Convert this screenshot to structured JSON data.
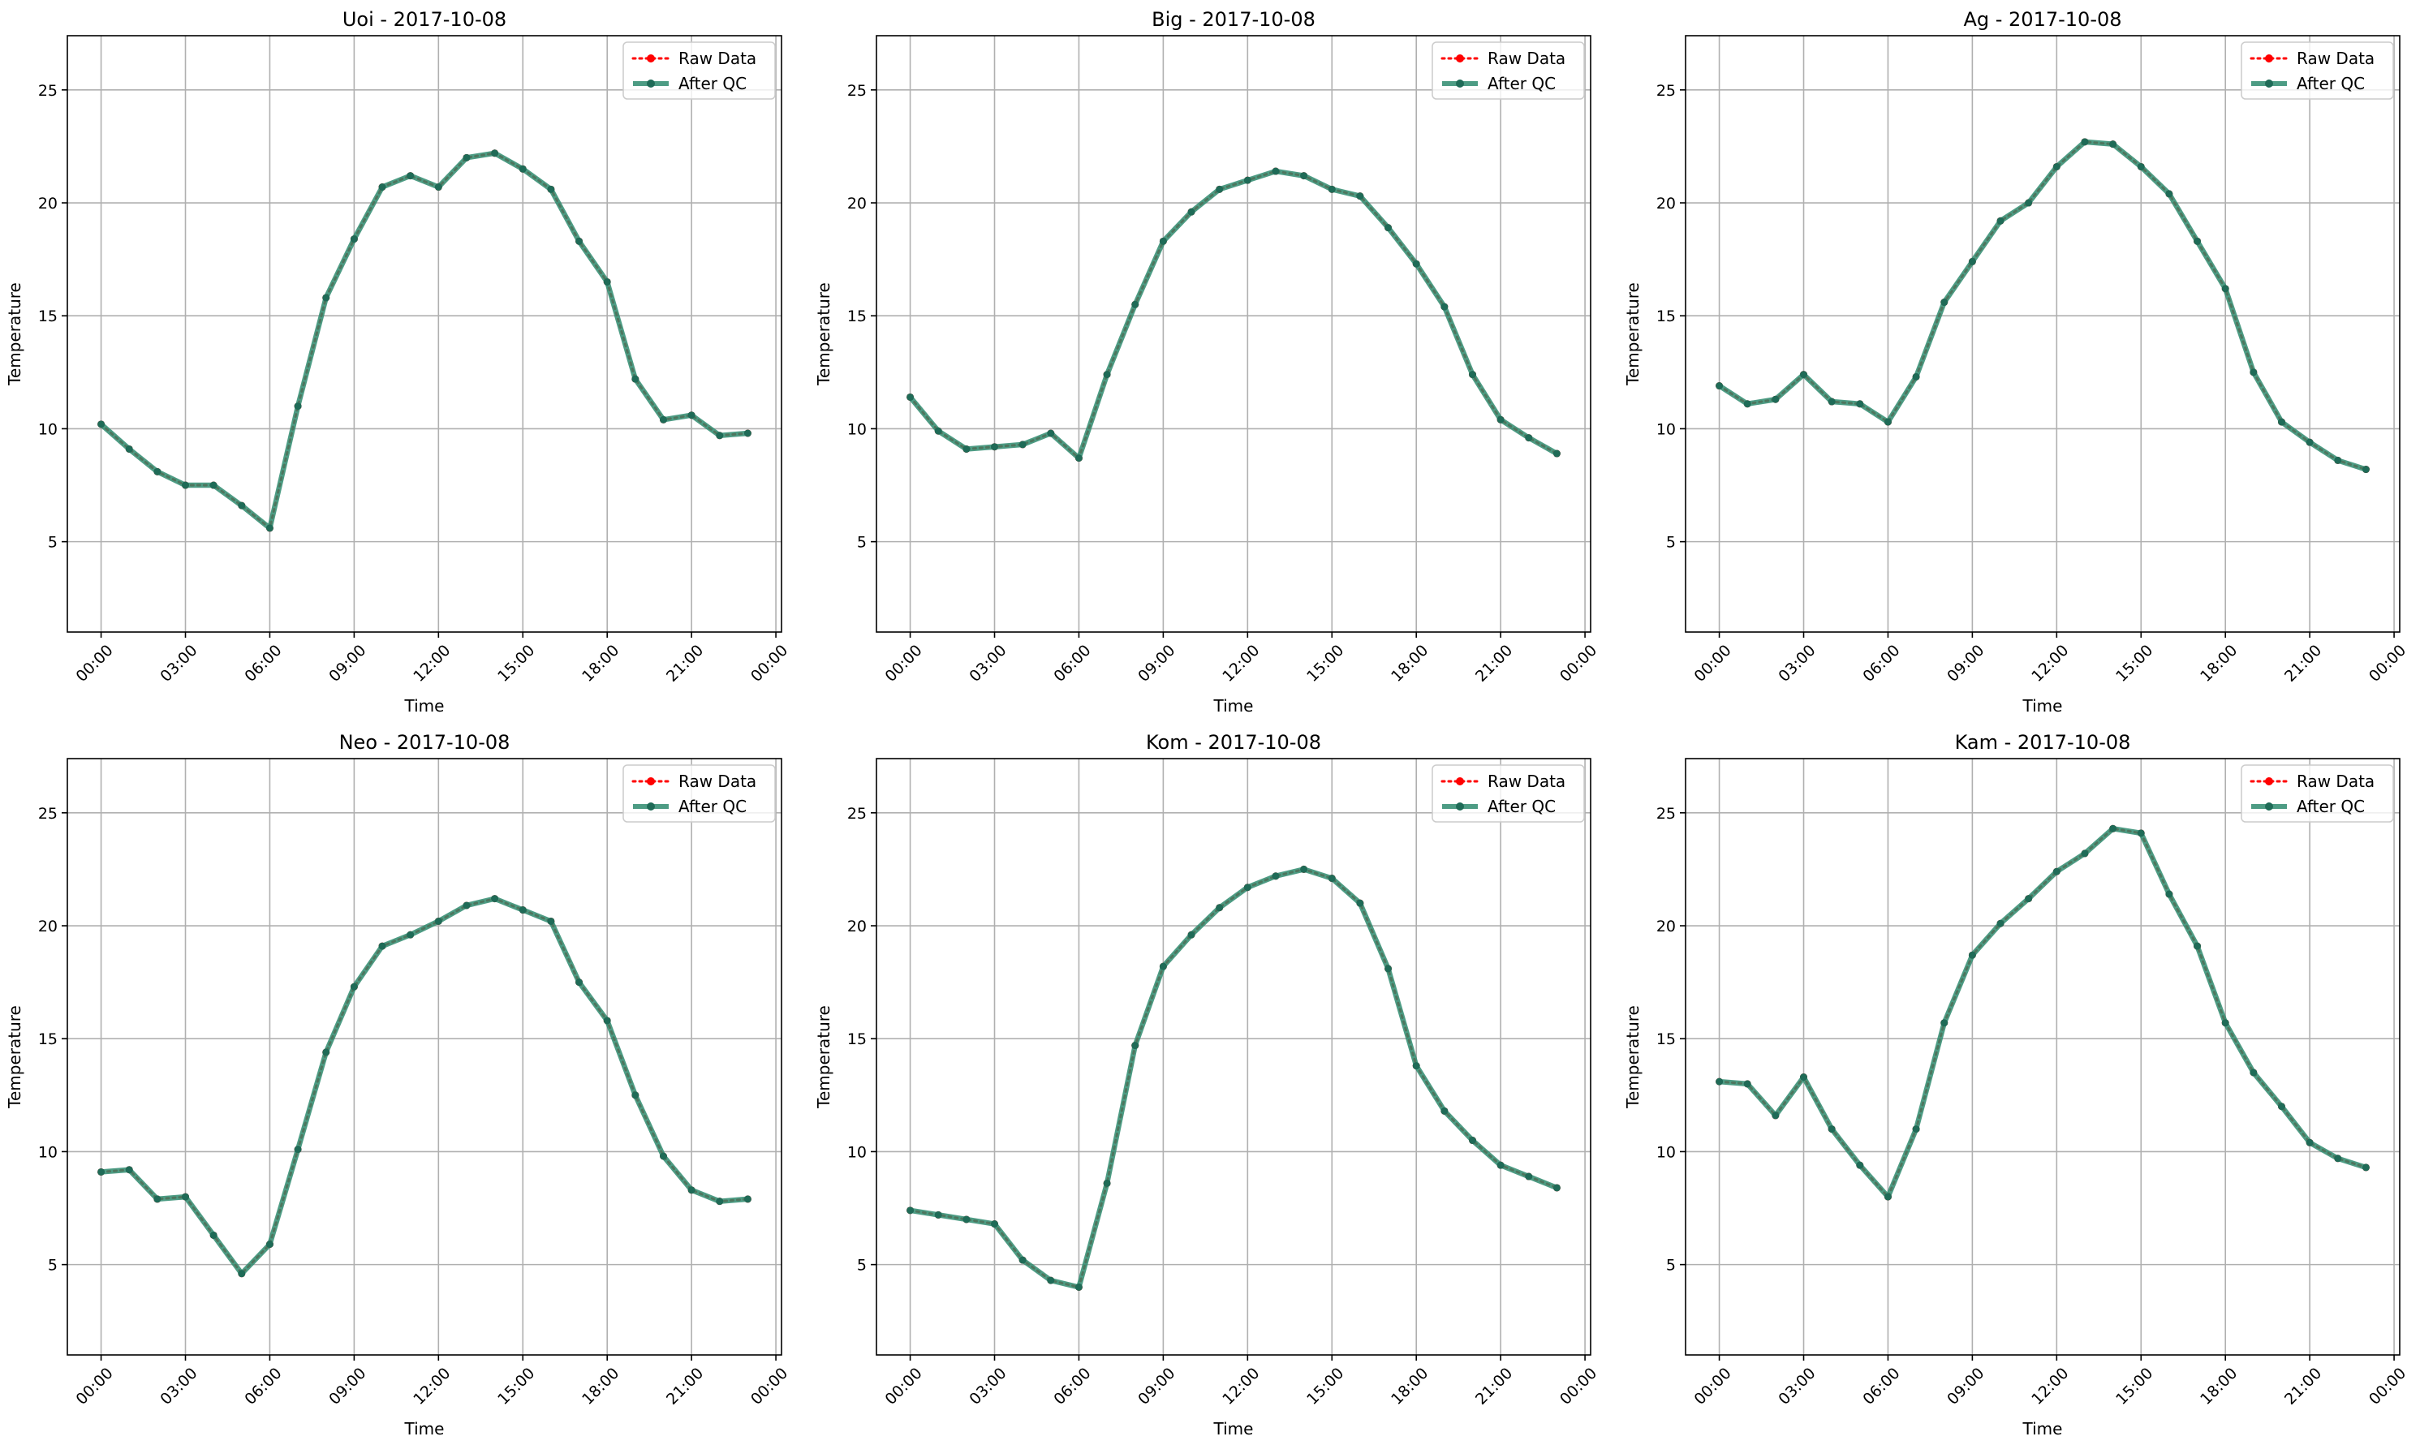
{
  "colors": {
    "raw": "#ff0000",
    "after_qc": "#2e8b6e",
    "grid": "#b0b0b0",
    "frame": "#000000"
  },
  "chart_data": [
    {
      "type": "line",
      "title": "Uoi - 2017-10-08",
      "xlabel": "Time",
      "ylabel": "Temperature",
      "x_hours": [
        0,
        1,
        2,
        3,
        4,
        5,
        6,
        7,
        8,
        9,
        10,
        11,
        12,
        13,
        14,
        15,
        16,
        17,
        18,
        19,
        20,
        21,
        22,
        23
      ],
      "xlim": [
        -1.2,
        24.2
      ],
      "ylim": [
        1.0,
        27.4
      ],
      "xticks": [
        "00:00",
        "03:00",
        "06:00",
        "09:00",
        "12:00",
        "15:00",
        "18:00",
        "21:00",
        "00:00"
      ],
      "yticks": [
        5,
        10,
        15,
        20,
        25
      ],
      "grid": true,
      "legend_position": "upper right",
      "series": [
        {
          "name": "Raw Data",
          "style": "dotted",
          "values": [
            10.2,
            9.1,
            8.1,
            7.5,
            7.5,
            6.6,
            5.6,
            11.0,
            15.8,
            18.4,
            20.7,
            21.2,
            20.7,
            22.0,
            22.2,
            21.5,
            20.6,
            18.3,
            16.5,
            12.2,
            10.4,
            10.6,
            9.7,
            9.8
          ]
        },
        {
          "name": "After QC",
          "style": "solid",
          "values": [
            10.2,
            9.1,
            8.1,
            7.5,
            7.5,
            6.6,
            5.6,
            11.0,
            15.8,
            18.4,
            20.7,
            21.2,
            20.7,
            22.0,
            22.2,
            21.5,
            20.6,
            18.3,
            16.5,
            12.2,
            10.4,
            10.6,
            9.7,
            9.8
          ]
        }
      ]
    },
    {
      "type": "line",
      "title": "Big - 2017-10-08",
      "xlabel": "Time",
      "ylabel": "Temperature",
      "x_hours": [
        0,
        1,
        2,
        3,
        4,
        5,
        6,
        7,
        8,
        9,
        10,
        11,
        12,
        13,
        14,
        15,
        16,
        17,
        18,
        19,
        20,
        21,
        22,
        23
      ],
      "xlim": [
        -1.2,
        24.2
      ],
      "ylim": [
        1.0,
        27.4
      ],
      "xticks": [
        "00:00",
        "03:00",
        "06:00",
        "09:00",
        "12:00",
        "15:00",
        "18:00",
        "21:00",
        "00:00"
      ],
      "yticks": [
        5,
        10,
        15,
        20,
        25
      ],
      "grid": true,
      "legend_position": "upper right",
      "series": [
        {
          "name": "Raw Data",
          "style": "dotted",
          "values": [
            11.4,
            9.9,
            9.1,
            9.2,
            9.3,
            9.8,
            8.7,
            12.4,
            15.5,
            18.3,
            19.6,
            20.6,
            21.0,
            21.4,
            21.2,
            20.6,
            20.3,
            18.9,
            17.3,
            15.4,
            12.4,
            10.4,
            9.6,
            8.9
          ]
        },
        {
          "name": "After QC",
          "style": "solid",
          "values": [
            11.4,
            9.9,
            9.1,
            9.2,
            9.3,
            9.8,
            8.7,
            12.4,
            15.5,
            18.3,
            19.6,
            20.6,
            21.0,
            21.4,
            21.2,
            20.6,
            20.3,
            18.9,
            17.3,
            15.4,
            12.4,
            10.4,
            9.6,
            8.9
          ]
        }
      ]
    },
    {
      "type": "line",
      "title": "Ag - 2017-10-08",
      "xlabel": "Time",
      "ylabel": "Temperature",
      "x_hours": [
        0,
        1,
        2,
        3,
        4,
        5,
        6,
        7,
        8,
        9,
        10,
        11,
        12,
        13,
        14,
        15,
        16,
        17,
        18,
        19,
        20,
        21,
        22,
        23
      ],
      "xlim": [
        -1.2,
        24.2
      ],
      "ylim": [
        1.0,
        27.4
      ],
      "xticks": [
        "00:00",
        "03:00",
        "06:00",
        "09:00",
        "12:00",
        "15:00",
        "18:00",
        "21:00",
        "00:00"
      ],
      "yticks": [
        5,
        10,
        15,
        20,
        25
      ],
      "grid": true,
      "legend_position": "upper right",
      "series": [
        {
          "name": "Raw Data",
          "style": "dotted",
          "values": [
            11.9,
            11.1,
            11.3,
            12.4,
            11.2,
            11.1,
            10.3,
            12.3,
            15.6,
            17.4,
            19.2,
            20.0,
            21.6,
            22.7,
            22.6,
            21.6,
            20.4,
            18.3,
            16.2,
            12.5,
            10.3,
            9.4,
            8.6,
            8.2
          ]
        },
        {
          "name": "After QC",
          "style": "solid",
          "values": [
            11.9,
            11.1,
            11.3,
            12.4,
            11.2,
            11.1,
            10.3,
            12.3,
            15.6,
            17.4,
            19.2,
            20.0,
            21.6,
            22.7,
            22.6,
            21.6,
            20.4,
            18.3,
            16.2,
            12.5,
            10.3,
            9.4,
            8.6,
            8.2
          ]
        }
      ]
    },
    {
      "type": "line",
      "title": "Neo - 2017-10-08",
      "xlabel": "Time",
      "ylabel": "Temperature",
      "x_hours": [
        0,
        1,
        2,
        3,
        4,
        5,
        6,
        7,
        8,
        9,
        10,
        11,
        12,
        13,
        14,
        15,
        16,
        17,
        18,
        19,
        20,
        21,
        22,
        23
      ],
      "xlim": [
        -1.2,
        24.2
      ],
      "ylim": [
        1.0,
        27.4
      ],
      "xticks": [
        "00:00",
        "03:00",
        "06:00",
        "09:00",
        "12:00",
        "15:00",
        "18:00",
        "21:00",
        "00:00"
      ],
      "yticks": [
        5,
        10,
        15,
        20,
        25
      ],
      "grid": true,
      "legend_position": "upper right",
      "series": [
        {
          "name": "Raw Data",
          "style": "dotted",
          "values": [
            9.1,
            9.2,
            7.9,
            8.0,
            6.3,
            4.6,
            5.9,
            10.1,
            14.4,
            17.3,
            19.1,
            19.6,
            20.2,
            20.9,
            21.2,
            20.7,
            20.2,
            17.5,
            15.8,
            12.5,
            9.8,
            8.3,
            7.8,
            7.9
          ]
        },
        {
          "name": "After QC",
          "style": "solid",
          "values": [
            9.1,
            9.2,
            7.9,
            8.0,
            6.3,
            4.6,
            5.9,
            10.1,
            14.4,
            17.3,
            19.1,
            19.6,
            20.2,
            20.9,
            21.2,
            20.7,
            20.2,
            17.5,
            15.8,
            12.5,
            9.8,
            8.3,
            7.8,
            7.9
          ]
        }
      ]
    },
    {
      "type": "line",
      "title": "Kom - 2017-10-08",
      "xlabel": "Time",
      "ylabel": "Temperature",
      "x_hours": [
        0,
        1,
        2,
        3,
        4,
        5,
        6,
        7,
        8,
        9,
        10,
        11,
        12,
        13,
        14,
        15,
        16,
        17,
        18,
        19,
        20,
        21,
        22,
        23
      ],
      "xlim": [
        -1.2,
        24.2
      ],
      "ylim": [
        1.0,
        27.4
      ],
      "xticks": [
        "00:00",
        "03:00",
        "06:00",
        "09:00",
        "12:00",
        "15:00",
        "18:00",
        "21:00",
        "00:00"
      ],
      "yticks": [
        5,
        10,
        15,
        20,
        25
      ],
      "grid": true,
      "legend_position": "upper right",
      "series": [
        {
          "name": "Raw Data",
          "style": "dotted",
          "values": [
            7.4,
            7.2,
            7.0,
            6.8,
            5.2,
            4.3,
            4.0,
            8.6,
            14.7,
            18.2,
            19.6,
            20.8,
            21.7,
            22.2,
            22.5,
            22.1,
            21.0,
            18.1,
            13.8,
            11.8,
            10.5,
            9.4,
            8.9,
            8.4
          ]
        },
        {
          "name": "After QC",
          "style": "solid",
          "values": [
            7.4,
            7.2,
            7.0,
            6.8,
            5.2,
            4.3,
            4.0,
            8.6,
            14.7,
            18.2,
            19.6,
            20.8,
            21.7,
            22.2,
            22.5,
            22.1,
            21.0,
            18.1,
            13.8,
            11.8,
            10.5,
            9.4,
            8.9,
            8.4
          ]
        }
      ]
    },
    {
      "type": "line",
      "title": "Kam - 2017-10-08",
      "xlabel": "Time",
      "ylabel": "Temperature",
      "x_hours": [
        0,
        1,
        2,
        3,
        4,
        5,
        6,
        7,
        8,
        9,
        10,
        11,
        12,
        13,
        14,
        15,
        16,
        17,
        18,
        19,
        20,
        21,
        22,
        23
      ],
      "xlim": [
        -1.2,
        24.2
      ],
      "ylim": [
        1.0,
        27.4
      ],
      "xticks": [
        "00:00",
        "03:00",
        "06:00",
        "09:00",
        "12:00",
        "15:00",
        "18:00",
        "21:00",
        "00:00"
      ],
      "yticks": [
        5,
        10,
        15,
        20,
        25
      ],
      "grid": true,
      "legend_position": "upper right",
      "series": [
        {
          "name": "Raw Data",
          "style": "dotted",
          "values": [
            13.1,
            13.0,
            11.6,
            13.3,
            11.0,
            9.4,
            8.0,
            11.0,
            15.7,
            18.7,
            20.1,
            21.2,
            22.4,
            23.2,
            24.3,
            24.1,
            21.4,
            19.1,
            15.7,
            13.5,
            12.0,
            10.4,
            9.7,
            9.3
          ]
        },
        {
          "name": "After QC",
          "style": "solid",
          "values": [
            13.1,
            13.0,
            11.6,
            13.3,
            11.0,
            9.4,
            8.0,
            11.0,
            15.7,
            18.7,
            20.1,
            21.2,
            22.4,
            23.2,
            24.3,
            24.1,
            21.4,
            19.1,
            15.7,
            13.5,
            12.0,
            10.4,
            9.7,
            9.3
          ]
        }
      ]
    }
  ]
}
